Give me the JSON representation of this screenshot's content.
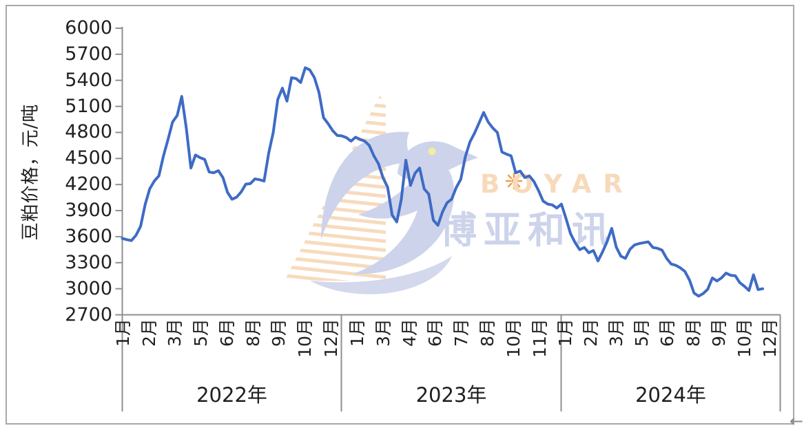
{
  "window": {
    "background": "#ffffff",
    "frame_border_color": "#a8a8a8",
    "axis_color": "#8f8f8f",
    "text_color": "#212121",
    "scroll_arrow": "←"
  },
  "watermark": {
    "brand_latin": "BOYAR",
    "brand_cjk": "博亚和讯",
    "peach": "#f7dabb",
    "lavender": "#ccd3ea",
    "orange": "#ee9e4e",
    "eye_yellow": "#f2ee9e"
  },
  "chart_data": {
    "type": "line",
    "title": "",
    "xlabel": "",
    "ylabel": "豆粕价格，元/吨",
    "ylim": [
      2700,
      6000
    ],
    "y_ticks": [
      6000,
      5700,
      5400,
      5100,
      4800,
      4500,
      4200,
      3900,
      3600,
      3300,
      3000,
      2700
    ],
    "grid": false,
    "legend": false,
    "x_axis": {
      "years": [
        {
          "label": "2022年",
          "month_labels": [
            "1月",
            "2月",
            "3月",
            "5月",
            "6月",
            "8月",
            "9月",
            "10月",
            "12月"
          ]
        },
        {
          "label": "2023年",
          "month_labels": [
            "1月",
            "3月",
            "4月",
            "6月",
            "7月",
            "8月",
            "10月",
            "11月"
          ]
        },
        {
          "label": "2024年",
          "month_labels": [
            "1月",
            "2月",
            "3月",
            "5月",
            "6月",
            "8月",
            "9月",
            "10月",
            "12月"
          ]
        }
      ]
    },
    "series": [
      {
        "name": "豆粕价格",
        "color": "#3E6BC5",
        "points_per_month": 4,
        "start_month": "2022-01",
        "end_month": "2024-11",
        "values": [
          3580,
          3565,
          3555,
          3615,
          3720,
          3970,
          4150,
          4240,
          4300,
          4530,
          4720,
          4920,
          4995,
          5215,
          4850,
          4390,
          4540,
          4510,
          4490,
          4345,
          4335,
          4360,
          4280,
          4110,
          4030,
          4055,
          4115,
          4205,
          4210,
          4265,
          4255,
          4240,
          4560,
          4800,
          5180,
          5310,
          5160,
          5430,
          5420,
          5375,
          5545,
          5520,
          5430,
          5260,
          4970,
          4900,
          4820,
          4765,
          4760,
          4740,
          4700,
          4745,
          4720,
          4700,
          4650,
          4530,
          4440,
          4280,
          4170,
          3850,
          3770,
          4030,
          4480,
          4190,
          4330,
          4390,
          4150,
          4090,
          3790,
          3730,
          3885,
          3990,
          4030,
          4165,
          4260,
          4520,
          4690,
          4790,
          4910,
          5030,
          4920,
          4850,
          4800,
          4575,
          4550,
          4530,
          4335,
          4355,
          4280,
          4300,
          4235,
          4130,
          4010,
          3975,
          3965,
          3930,
          3975,
          3810,
          3635,
          3530,
          3450,
          3475,
          3415,
          3440,
          3320,
          3425,
          3545,
          3695,
          3480,
          3375,
          3350,
          3455,
          3505,
          3520,
          3530,
          3540,
          3475,
          3465,
          3445,
          3350,
          3285,
          3270,
          3240,
          3200,
          3100,
          2950,
          2915,
          2945,
          2995,
          3125,
          3090,
          3125,
          3180,
          3155,
          3150,
          3070,
          3030,
          2980,
          3160,
          2990,
          3000
        ]
      }
    ]
  }
}
